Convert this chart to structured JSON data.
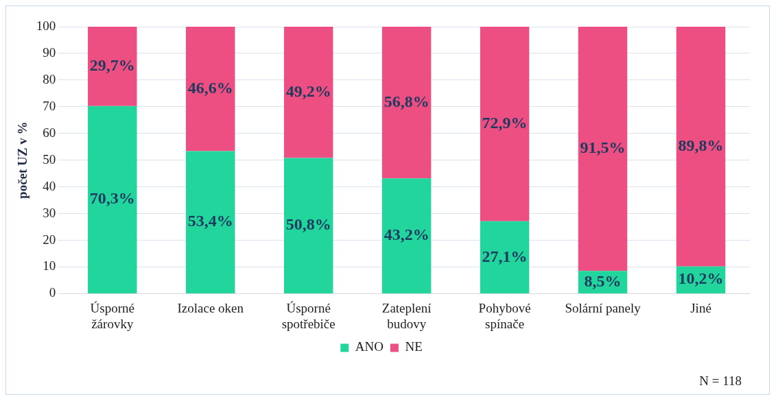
{
  "chart_data": {
    "type": "bar",
    "stacked": true,
    "ylabel": "počet UZ v %",
    "categories": [
      "Úsporné žárovky",
      "Izolace oken",
      "Úsporné spotřebiče",
      "Zateplení budovy",
      "Pohybové spínače",
      "Solární panely",
      "Jiné"
    ],
    "series": [
      {
        "name": "ANO",
        "color": "#22d59c",
        "values": [
          70.3,
          53.4,
          50.8,
          43.2,
          27.1,
          8.5,
          10.2
        ],
        "value_labels": [
          "70,3%",
          "53,4%",
          "50,8%",
          "43,2%",
          "27,1%",
          "8,5%",
          "10,2%"
        ]
      },
      {
        "name": "NE",
        "color": "#ee4f82",
        "values": [
          29.7,
          46.6,
          49.2,
          56.8,
          72.9,
          91.5,
          89.8
        ],
        "value_labels": [
          "29,7%",
          "46,6%",
          "49,2%",
          "56,8%",
          "72,9%",
          "91,5%",
          "89,8%"
        ]
      }
    ],
    "ylim": [
      0,
      100
    ],
    "yticks": [
      0,
      10,
      20,
      30,
      40,
      50,
      60,
      70,
      80,
      90,
      100
    ],
    "grid": "y",
    "legend": "bottom",
    "annotations": [
      "N = 118"
    ]
  }
}
